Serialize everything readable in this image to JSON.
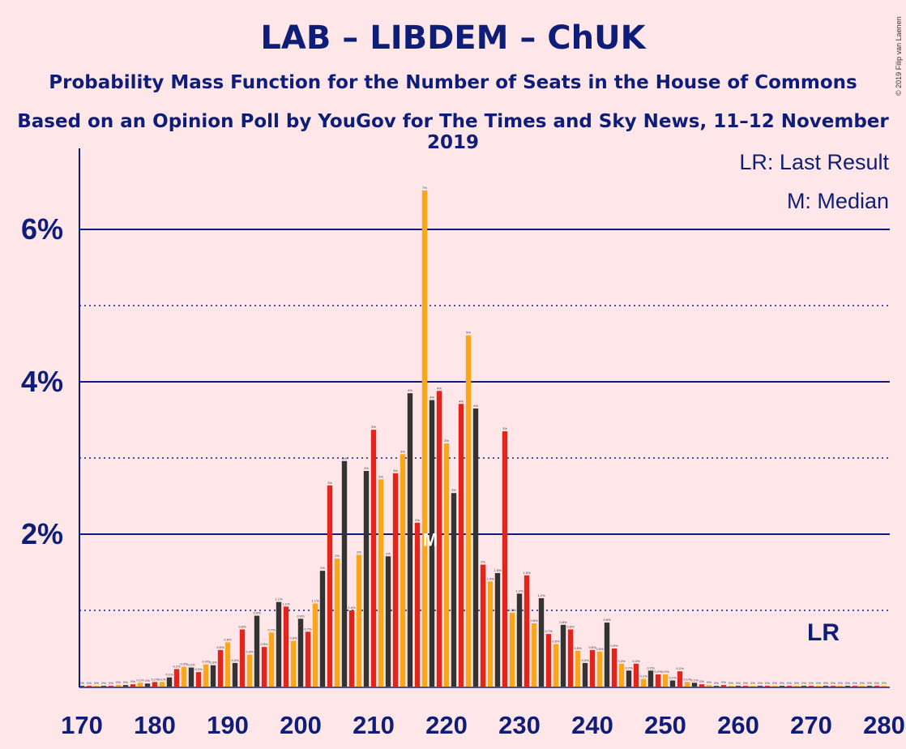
{
  "title": "LAB – LIBDEM – ChUK",
  "subtitle": "Probability Mass Function for the Number of Seats in the House of Commons",
  "subtitle2": "Based on an Opinion Poll by YouGov for The Times and Sky News, 11–12 November 2019",
  "copyright": "© 2019 Filip van Laenen",
  "legend": {
    "lr": "LR: Last Result",
    "m": "M: Median"
  },
  "lr_marker": "LR",
  "median_marker": "M",
  "colors": {
    "background": "#FFE6E8",
    "axis": "#0E1E78",
    "lab": "#E4241B",
    "libdem": "#FAA61A",
    "chuk": "#333333",
    "median": "#FFFFFF"
  },
  "chart_data": {
    "type": "bar",
    "xlabel": "",
    "ylabel": "",
    "ylim": [
      0,
      0.07
    ],
    "xlim": [
      170,
      280
    ],
    "x_ticks": [
      170,
      180,
      190,
      200,
      210,
      220,
      230,
      240,
      250,
      260,
      270,
      280
    ],
    "y_ticks": [
      0.02,
      0.04,
      0.06
    ],
    "y_tick_labels": [
      "2%",
      "4%",
      "6%"
    ],
    "last_result": 273,
    "median": 218,
    "seats": [
      170,
      171,
      172,
      173,
      174,
      175,
      176,
      177,
      178,
      179,
      180,
      181,
      182,
      183,
      184,
      185,
      186,
      187,
      188,
      189,
      190,
      191,
      192,
      193,
      194,
      195,
      196,
      197,
      198,
      199,
      200,
      201,
      202,
      203,
      204,
      205,
      206,
      207,
      208,
      209,
      210,
      211,
      212,
      213,
      214,
      215,
      216,
      217,
      218,
      219,
      220,
      221,
      222,
      223,
      224,
      225,
      226,
      227,
      228,
      229,
      230,
      231,
      232,
      233,
      234,
      235,
      236,
      237,
      238,
      239,
      240,
      241,
      242,
      243,
      244,
      245,
      246,
      247,
      248,
      249,
      250,
      251,
      252,
      253,
      254,
      255,
      256,
      257,
      258,
      259,
      260,
      261,
      262,
      263,
      264,
      265,
      266,
      267,
      268,
      269,
      270,
      271,
      272,
      273,
      274,
      275,
      276,
      277,
      278,
      279,
      280
    ],
    "values": [
      0.0001,
      0.0001,
      0.0001,
      0.0001,
      0.0001,
      0.0002,
      0.0002,
      0.0003,
      0.0005,
      0.0004,
      0.0006,
      0.0006,
      0.0012,
      0.0023,
      0.0026,
      0.0025,
      0.0019,
      0.0029,
      0.0028,
      0.0048,
      0.0058,
      0.0031,
      0.0075,
      0.0042,
      0.0093,
      0.0052,
      0.0071,
      0.0111,
      0.0105,
      0.006,
      0.0089,
      0.0072,
      0.0109,
      0.0152,
      0.0264,
      0.0168,
      0.0296,
      0.01,
      0.0173,
      0.0283,
      0.0337,
      0.0272,
      0.0171,
      0.028,
      0.0305,
      0.0385,
      0.0215,
      0.0651,
      0.0376,
      0.0388,
      0.0319,
      0.0254,
      0.0371,
      0.0461,
      0.0365,
      0.016,
      0.0138,
      0.0149,
      0.0335,
      0.0097,
      0.0122,
      0.0146,
      0.0083,
      0.0116,
      0.0069,
      0.0056,
      0.0081,
      0.0075,
      0.0047,
      0.0031,
      0.0048,
      0.0046,
      0.0084,
      0.005,
      0.003,
      0.0021,
      0.003,
      0.001,
      0.0021,
      0.0016,
      0.0016,
      0.0008,
      0.002,
      0.0006,
      0.0005,
      0.0003,
      0.0002,
      0.0001,
      0.0002,
      0.0001,
      0.0001,
      0.0001,
      0.0001,
      0.0001,
      0.0001,
      0.0001,
      0.0001,
      0.0001,
      0.0001,
      0.0001,
      0.0001,
      0.0001,
      0.0001,
      0.0001,
      0.0001,
      0.0001,
      0.0001,
      0.0001,
      0.0001,
      0.0001,
      0.0001
    ],
    "labels": [
      "0%",
      "0%",
      "0%",
      "0%",
      "0%",
      "0%",
      "0%",
      "0%",
      "0.1%",
      "0%",
      "0.1%",
      "0.1%",
      "0.1%",
      "0.2%",
      "0.3%",
      "0.2%",
      "0.2%",
      "0.3%",
      "0.3%",
      "0.5%",
      "0.6%",
      "0.3%",
      "0.8%",
      "0.4%",
      "0.9%",
      "0.5%",
      "0.7%",
      "1.1%",
      "1.1%",
      "0.6%",
      "0.9%",
      "0.7%",
      "1.1%",
      "2%",
      "3%",
      "2%",
      "3%",
      "1.0%",
      "2%",
      "3%",
      "3%",
      "3%",
      "2%",
      "3%",
      "3%",
      "4%",
      "2%",
      "7%",
      "4%",
      "4%",
      "3%",
      "3%",
      "4%",
      "5%",
      "4%",
      "2%",
      "1.4%",
      "1.5%",
      "3%",
      "1.0%",
      "1.2%",
      "1.5%",
      "0.8%",
      "1.2%",
      "0.7%",
      "0.6%",
      "0.8%",
      "0.8%",
      "0.5%",
      "0.3%",
      "0.5%",
      "0.5%",
      "0.8%",
      "0.5%",
      "0.3%",
      "0.2%",
      "0.3%",
      "0.1%",
      "0.2%",
      "0.2%",
      "0.2%",
      "0.1%",
      "0.2%",
      "0.1%",
      "0.1%",
      "0%",
      "0%",
      "0%",
      "0%",
      "0%",
      "0%",
      "0%",
      "0%",
      "0%",
      "0%",
      "0%",
      "0%",
      "0%",
      "0%",
      "0%",
      "0%",
      "0%",
      "0%",
      "0%",
      "0%",
      "0%",
      "0%",
      "0%",
      "0%",
      "0%",
      "0%"
    ]
  }
}
